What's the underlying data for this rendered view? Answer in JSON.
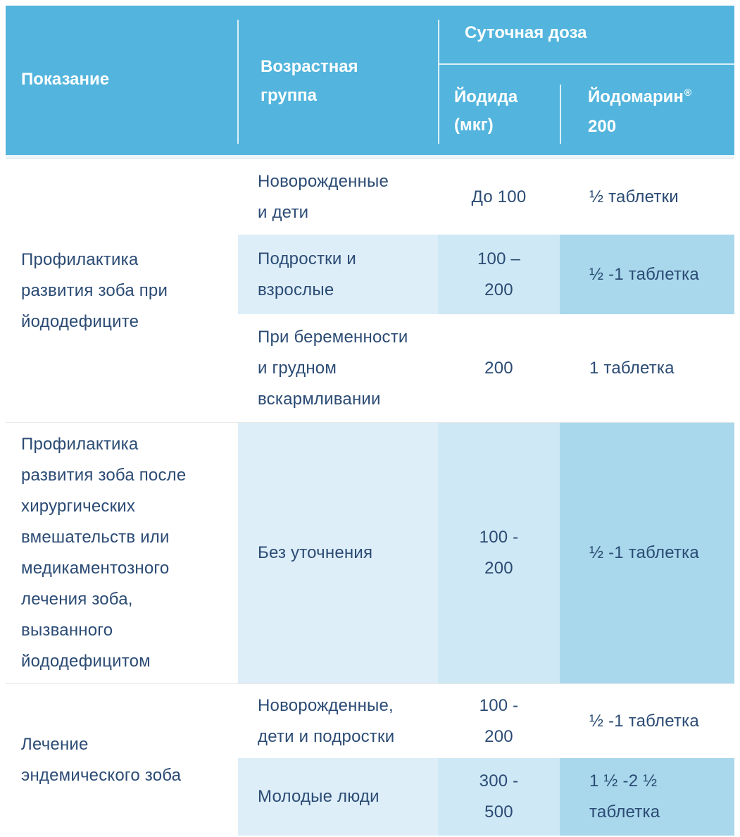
{
  "table": {
    "header": {
      "indication": "Показание",
      "age_group": "Возрастная\nгруппа",
      "daily_dose": "Суточная доза",
      "dose_sub1": "Йодида\n(мкг)",
      "dose_sub2_name": "Йодомарин",
      "dose_sub2_reg": "®",
      "dose_sub2_line2": "200"
    },
    "sections": [
      {
        "indication": "Профилактика\nразвития зоба при\nйододефиците",
        "rows": [
          {
            "age_group": "Новорожденные\nи дети",
            "iodide_mcg": "До 100",
            "yodomarin_200": "½ таблетки",
            "shaded": false
          },
          {
            "age_group": "Подростки и\nвзрослые",
            "iodide_mcg": "100 –\n200",
            "yodomarin_200": "½ -1 таблетка",
            "shaded": true
          },
          {
            "age_group": "При беременности\nи грудном\nвскармливании",
            "iodide_mcg": "200",
            "yodomarin_200": "1 таблетка",
            "shaded": false
          }
        ]
      },
      {
        "indication": "Профилактика\nразвития зоба после\nхирургических\nвмешательств или\nмедикаментозного\nлечения зоба,\nвызванного\nйододефицитом",
        "rows": [
          {
            "age_group": "Без уточнения",
            "iodide_mcg": "100 -\n200",
            "yodomarin_200": "½ -1 таблетка",
            "shaded": true
          }
        ]
      },
      {
        "indication": "Лечение\nэндемического зоба",
        "rows": [
          {
            "age_group": "Новорожденные,\nдети и подростки",
            "iodide_mcg": "100 -\n200",
            "yodomarin_200": "½ -1 таблетка",
            "shaded": false
          },
          {
            "age_group": "Молодые люди",
            "iodide_mcg": "300 -\n500",
            "yodomarin_200": "1 ½ -2 ½\nтаблетка",
            "shaded": true
          }
        ]
      }
    ],
    "colors": {
      "header_bg": "#53b5dd",
      "header_text": "#ffffff",
      "body_text": "#2b4b74",
      "shade_age_group": "#ddeef8",
      "shade_iodide": "#cfe8f5",
      "shade_yodomarin": "#a9d8ec",
      "section_separator": "#e8e8e8"
    }
  }
}
